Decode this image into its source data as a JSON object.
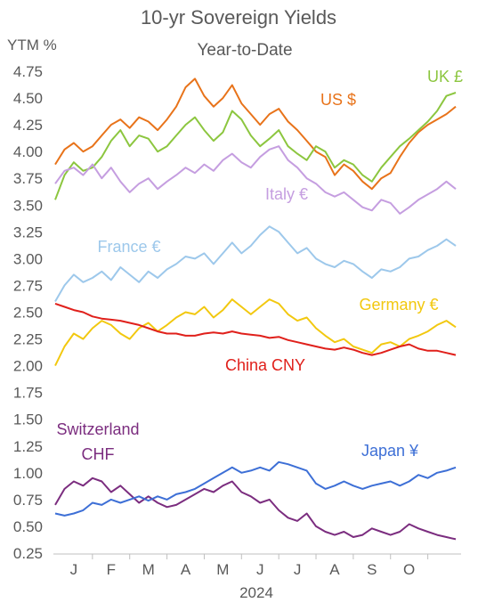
{
  "chart_data": {
    "type": "line",
    "title": "10-yr Sovereign Yields",
    "subtitle": "Year-to-Date",
    "ylabel": "YTM %",
    "xlabel": "2024",
    "ylim": [
      0.25,
      4.75
    ],
    "y_ticks": [
      "4.75",
      "4.50",
      "4.25",
      "4.00",
      "3.75",
      "3.50",
      "3.25",
      "3.00",
      "2.75",
      "2.50",
      "2.25",
      "2.00",
      "1.75",
      "1.50",
      "1.25",
      "1.00",
      "0.75",
      "0.50",
      "0.25"
    ],
    "x_ticks": [
      "J",
      "F",
      "M",
      "A",
      "M",
      "J",
      "J",
      "A",
      "S",
      "O"
    ],
    "x_months": [
      0.5,
      1.5,
      2.5,
      3.5,
      4.5,
      5.5,
      6.5,
      7.5,
      8.5,
      9.5
    ],
    "xlim": [
      0,
      10.75
    ],
    "grid": false,
    "legend": "inline labels",
    "series": [
      {
        "name": "US $",
        "label": "US $",
        "color": "#E8731A",
        "x": [
          0,
          0.25,
          0.5,
          0.75,
          1,
          1.25,
          1.5,
          1.75,
          2,
          2.25,
          2.5,
          2.75,
          3,
          3.25,
          3.5,
          3.75,
          4,
          4.25,
          4.5,
          4.75,
          5,
          5.25,
          5.5,
          5.75,
          6,
          6.25,
          6.5,
          6.75,
          7,
          7.25,
          7.5,
          7.75,
          8,
          8.25,
          8.5,
          8.75,
          9,
          9.25,
          9.5,
          9.75,
          10,
          10.25,
          10.5,
          10.75
        ],
        "y": [
          3.88,
          4.02,
          4.08,
          4.0,
          4.05,
          4.15,
          4.25,
          4.3,
          4.22,
          4.32,
          4.28,
          4.2,
          4.3,
          4.42,
          4.6,
          4.68,
          4.52,
          4.42,
          4.5,
          4.62,
          4.45,
          4.35,
          4.25,
          4.35,
          4.4,
          4.28,
          4.2,
          4.1,
          4.0,
          3.95,
          3.78,
          3.88,
          3.82,
          3.72,
          3.65,
          3.75,
          3.8,
          3.95,
          4.08,
          4.18,
          4.25,
          4.3,
          4.35,
          4.42
        ]
      },
      {
        "name": "UK £",
        "label": "UK £",
        "color": "#8CC63F",
        "x": [
          0,
          0.25,
          0.5,
          0.75,
          1,
          1.25,
          1.5,
          1.75,
          2,
          2.25,
          2.5,
          2.75,
          3,
          3.25,
          3.5,
          3.75,
          4,
          4.25,
          4.5,
          4.75,
          5,
          5.25,
          5.5,
          5.75,
          6,
          6.25,
          6.5,
          6.75,
          7,
          7.25,
          7.5,
          7.75,
          8,
          8.25,
          8.5,
          8.75,
          9,
          9.25,
          9.5,
          9.75,
          10,
          10.25,
          10.5,
          10.75
        ],
        "y": [
          3.55,
          3.78,
          3.9,
          3.82,
          3.85,
          3.95,
          4.1,
          4.2,
          4.05,
          4.15,
          4.12,
          4.0,
          4.05,
          4.15,
          4.25,
          4.32,
          4.2,
          4.1,
          4.18,
          4.38,
          4.3,
          4.15,
          4.05,
          4.12,
          4.2,
          4.05,
          3.98,
          3.92,
          4.05,
          4.0,
          3.85,
          3.92,
          3.88,
          3.78,
          3.72,
          3.85,
          3.95,
          4.05,
          4.12,
          4.2,
          4.28,
          4.38,
          4.52,
          4.55
        ]
      },
      {
        "name": "Italy €",
        "label": "Italy €",
        "color": "#C59EE0",
        "x": [
          0,
          0.25,
          0.5,
          0.75,
          1,
          1.25,
          1.5,
          1.75,
          2,
          2.25,
          2.5,
          2.75,
          3,
          3.25,
          3.5,
          3.75,
          4,
          4.25,
          4.5,
          4.75,
          5,
          5.25,
          5.5,
          5.75,
          6,
          6.25,
          6.5,
          6.75,
          7,
          7.25,
          7.5,
          7.75,
          8,
          8.25,
          8.5,
          8.75,
          9,
          9.25,
          9.5,
          9.75,
          10,
          10.25,
          10.5,
          10.75
        ],
        "y": [
          3.7,
          3.82,
          3.85,
          3.78,
          3.88,
          3.75,
          3.85,
          3.72,
          3.62,
          3.7,
          3.75,
          3.65,
          3.72,
          3.78,
          3.85,
          3.8,
          3.88,
          3.82,
          3.92,
          3.98,
          3.9,
          3.85,
          3.95,
          4.02,
          4.05,
          3.92,
          3.85,
          3.75,
          3.7,
          3.62,
          3.58,
          3.62,
          3.55,
          3.48,
          3.45,
          3.55,
          3.52,
          3.42,
          3.48,
          3.55,
          3.6,
          3.65,
          3.72,
          3.65
        ]
      },
      {
        "name": "France €",
        "label": "France €",
        "color": "#9DC8EB",
        "x": [
          0,
          0.25,
          0.5,
          0.75,
          1,
          1.25,
          1.5,
          1.75,
          2,
          2.25,
          2.5,
          2.75,
          3,
          3.25,
          3.5,
          3.75,
          4,
          4.25,
          4.5,
          4.75,
          5,
          5.25,
          5.5,
          5.75,
          6,
          6.25,
          6.5,
          6.75,
          7,
          7.25,
          7.5,
          7.75,
          8,
          8.25,
          8.5,
          8.75,
          9,
          9.25,
          9.5,
          9.75,
          10,
          10.25,
          10.5,
          10.75
        ],
        "y": [
          2.6,
          2.75,
          2.85,
          2.78,
          2.82,
          2.88,
          2.8,
          2.92,
          2.85,
          2.78,
          2.88,
          2.82,
          2.9,
          2.95,
          3.02,
          3.0,
          3.05,
          2.95,
          3.05,
          3.15,
          3.05,
          3.12,
          3.22,
          3.3,
          3.25,
          3.15,
          3.05,
          3.1,
          3.0,
          2.95,
          2.92,
          2.98,
          2.95,
          2.88,
          2.82,
          2.9,
          2.88,
          2.92,
          3.0,
          3.02,
          3.08,
          3.12,
          3.18,
          3.12
        ]
      },
      {
        "name": "Germany €",
        "label": "Germany €",
        "color": "#F2C80F",
        "x": [
          0,
          0.25,
          0.5,
          0.75,
          1,
          1.25,
          1.5,
          1.75,
          2,
          2.25,
          2.5,
          2.75,
          3,
          3.25,
          3.5,
          3.75,
          4,
          4.25,
          4.5,
          4.75,
          5,
          5.25,
          5.5,
          5.75,
          6,
          6.25,
          6.5,
          6.75,
          7,
          7.25,
          7.5,
          7.75,
          8,
          8.25,
          8.5,
          8.75,
          9,
          9.25,
          9.5,
          9.75,
          10,
          10.25,
          10.5,
          10.75
        ],
        "y": [
          2.0,
          2.18,
          2.3,
          2.25,
          2.35,
          2.42,
          2.38,
          2.3,
          2.25,
          2.35,
          2.4,
          2.32,
          2.38,
          2.45,
          2.5,
          2.48,
          2.55,
          2.45,
          2.52,
          2.62,
          2.55,
          2.48,
          2.55,
          2.62,
          2.58,
          2.48,
          2.42,
          2.45,
          2.35,
          2.28,
          2.22,
          2.25,
          2.18,
          2.15,
          2.12,
          2.2,
          2.22,
          2.18,
          2.25,
          2.28,
          2.32,
          2.38,
          2.42,
          2.36
        ]
      },
      {
        "name": "China CNY",
        "label": "China CNY",
        "color": "#E0201B",
        "x": [
          0,
          0.25,
          0.5,
          0.75,
          1,
          1.25,
          1.5,
          1.75,
          2,
          2.25,
          2.5,
          2.75,
          3,
          3.25,
          3.5,
          3.75,
          4,
          4.25,
          4.5,
          4.75,
          5,
          5.25,
          5.5,
          5.75,
          6,
          6.25,
          6.5,
          6.75,
          7,
          7.25,
          7.5,
          7.75,
          8,
          8.25,
          8.5,
          8.75,
          9,
          9.25,
          9.5,
          9.75,
          10,
          10.25,
          10.5,
          10.75
        ],
        "y": [
          2.58,
          2.55,
          2.52,
          2.5,
          2.46,
          2.44,
          2.43,
          2.42,
          2.4,
          2.38,
          2.35,
          2.32,
          2.3,
          2.3,
          2.28,
          2.28,
          2.3,
          2.31,
          2.3,
          2.32,
          2.3,
          2.29,
          2.28,
          2.26,
          2.27,
          2.24,
          2.22,
          2.2,
          2.18,
          2.16,
          2.15,
          2.17,
          2.15,
          2.12,
          2.1,
          2.12,
          2.15,
          2.18,
          2.2,
          2.16,
          2.14,
          2.14,
          2.12,
          2.1
        ]
      },
      {
        "name": "Switzerland CHF",
        "label": "Switzerland",
        "label2": "CHF",
        "color": "#7B2D7F",
        "x": [
          0,
          0.25,
          0.5,
          0.75,
          1,
          1.25,
          1.5,
          1.75,
          2,
          2.25,
          2.5,
          2.75,
          3,
          3.25,
          3.5,
          3.75,
          4,
          4.25,
          4.5,
          4.75,
          5,
          5.25,
          5.5,
          5.75,
          6,
          6.25,
          6.5,
          6.75,
          7,
          7.25,
          7.5,
          7.75,
          8,
          8.25,
          8.5,
          8.75,
          9,
          9.25,
          9.5,
          9.75,
          10,
          10.25,
          10.5,
          10.75
        ],
        "y": [
          0.7,
          0.85,
          0.92,
          0.88,
          0.95,
          0.92,
          0.82,
          0.88,
          0.8,
          0.72,
          0.78,
          0.72,
          0.68,
          0.7,
          0.75,
          0.8,
          0.85,
          0.82,
          0.88,
          0.92,
          0.82,
          0.78,
          0.72,
          0.75,
          0.65,
          0.58,
          0.55,
          0.62,
          0.5,
          0.45,
          0.42,
          0.45,
          0.4,
          0.42,
          0.48,
          0.45,
          0.42,
          0.45,
          0.52,
          0.48,
          0.45,
          0.42,
          0.4,
          0.38
        ]
      },
      {
        "name": "Japan ¥",
        "label": "Japan ¥",
        "color": "#3D6FD6",
        "x": [
          0,
          0.25,
          0.5,
          0.75,
          1,
          1.25,
          1.5,
          1.75,
          2,
          2.25,
          2.5,
          2.75,
          3,
          3.25,
          3.5,
          3.75,
          4,
          4.25,
          4.5,
          4.75,
          5,
          5.25,
          5.5,
          5.75,
          6,
          6.25,
          6.5,
          6.75,
          7,
          7.25,
          7.5,
          7.75,
          8,
          8.25,
          8.5,
          8.75,
          9,
          9.25,
          9.5,
          9.75,
          10,
          10.25,
          10.5,
          10.75
        ],
        "y": [
          0.62,
          0.6,
          0.62,
          0.65,
          0.72,
          0.7,
          0.75,
          0.72,
          0.75,
          0.78,
          0.74,
          0.78,
          0.75,
          0.8,
          0.82,
          0.85,
          0.9,
          0.95,
          1.0,
          1.05,
          1.0,
          1.02,
          1.05,
          1.02,
          1.1,
          1.08,
          1.05,
          1.02,
          0.9,
          0.85,
          0.88,
          0.92,
          0.88,
          0.85,
          0.88,
          0.9,
          0.92,
          0.88,
          0.92,
          0.98,
          0.95,
          1.0,
          1.02,
          1.05
        ]
      }
    ]
  }
}
